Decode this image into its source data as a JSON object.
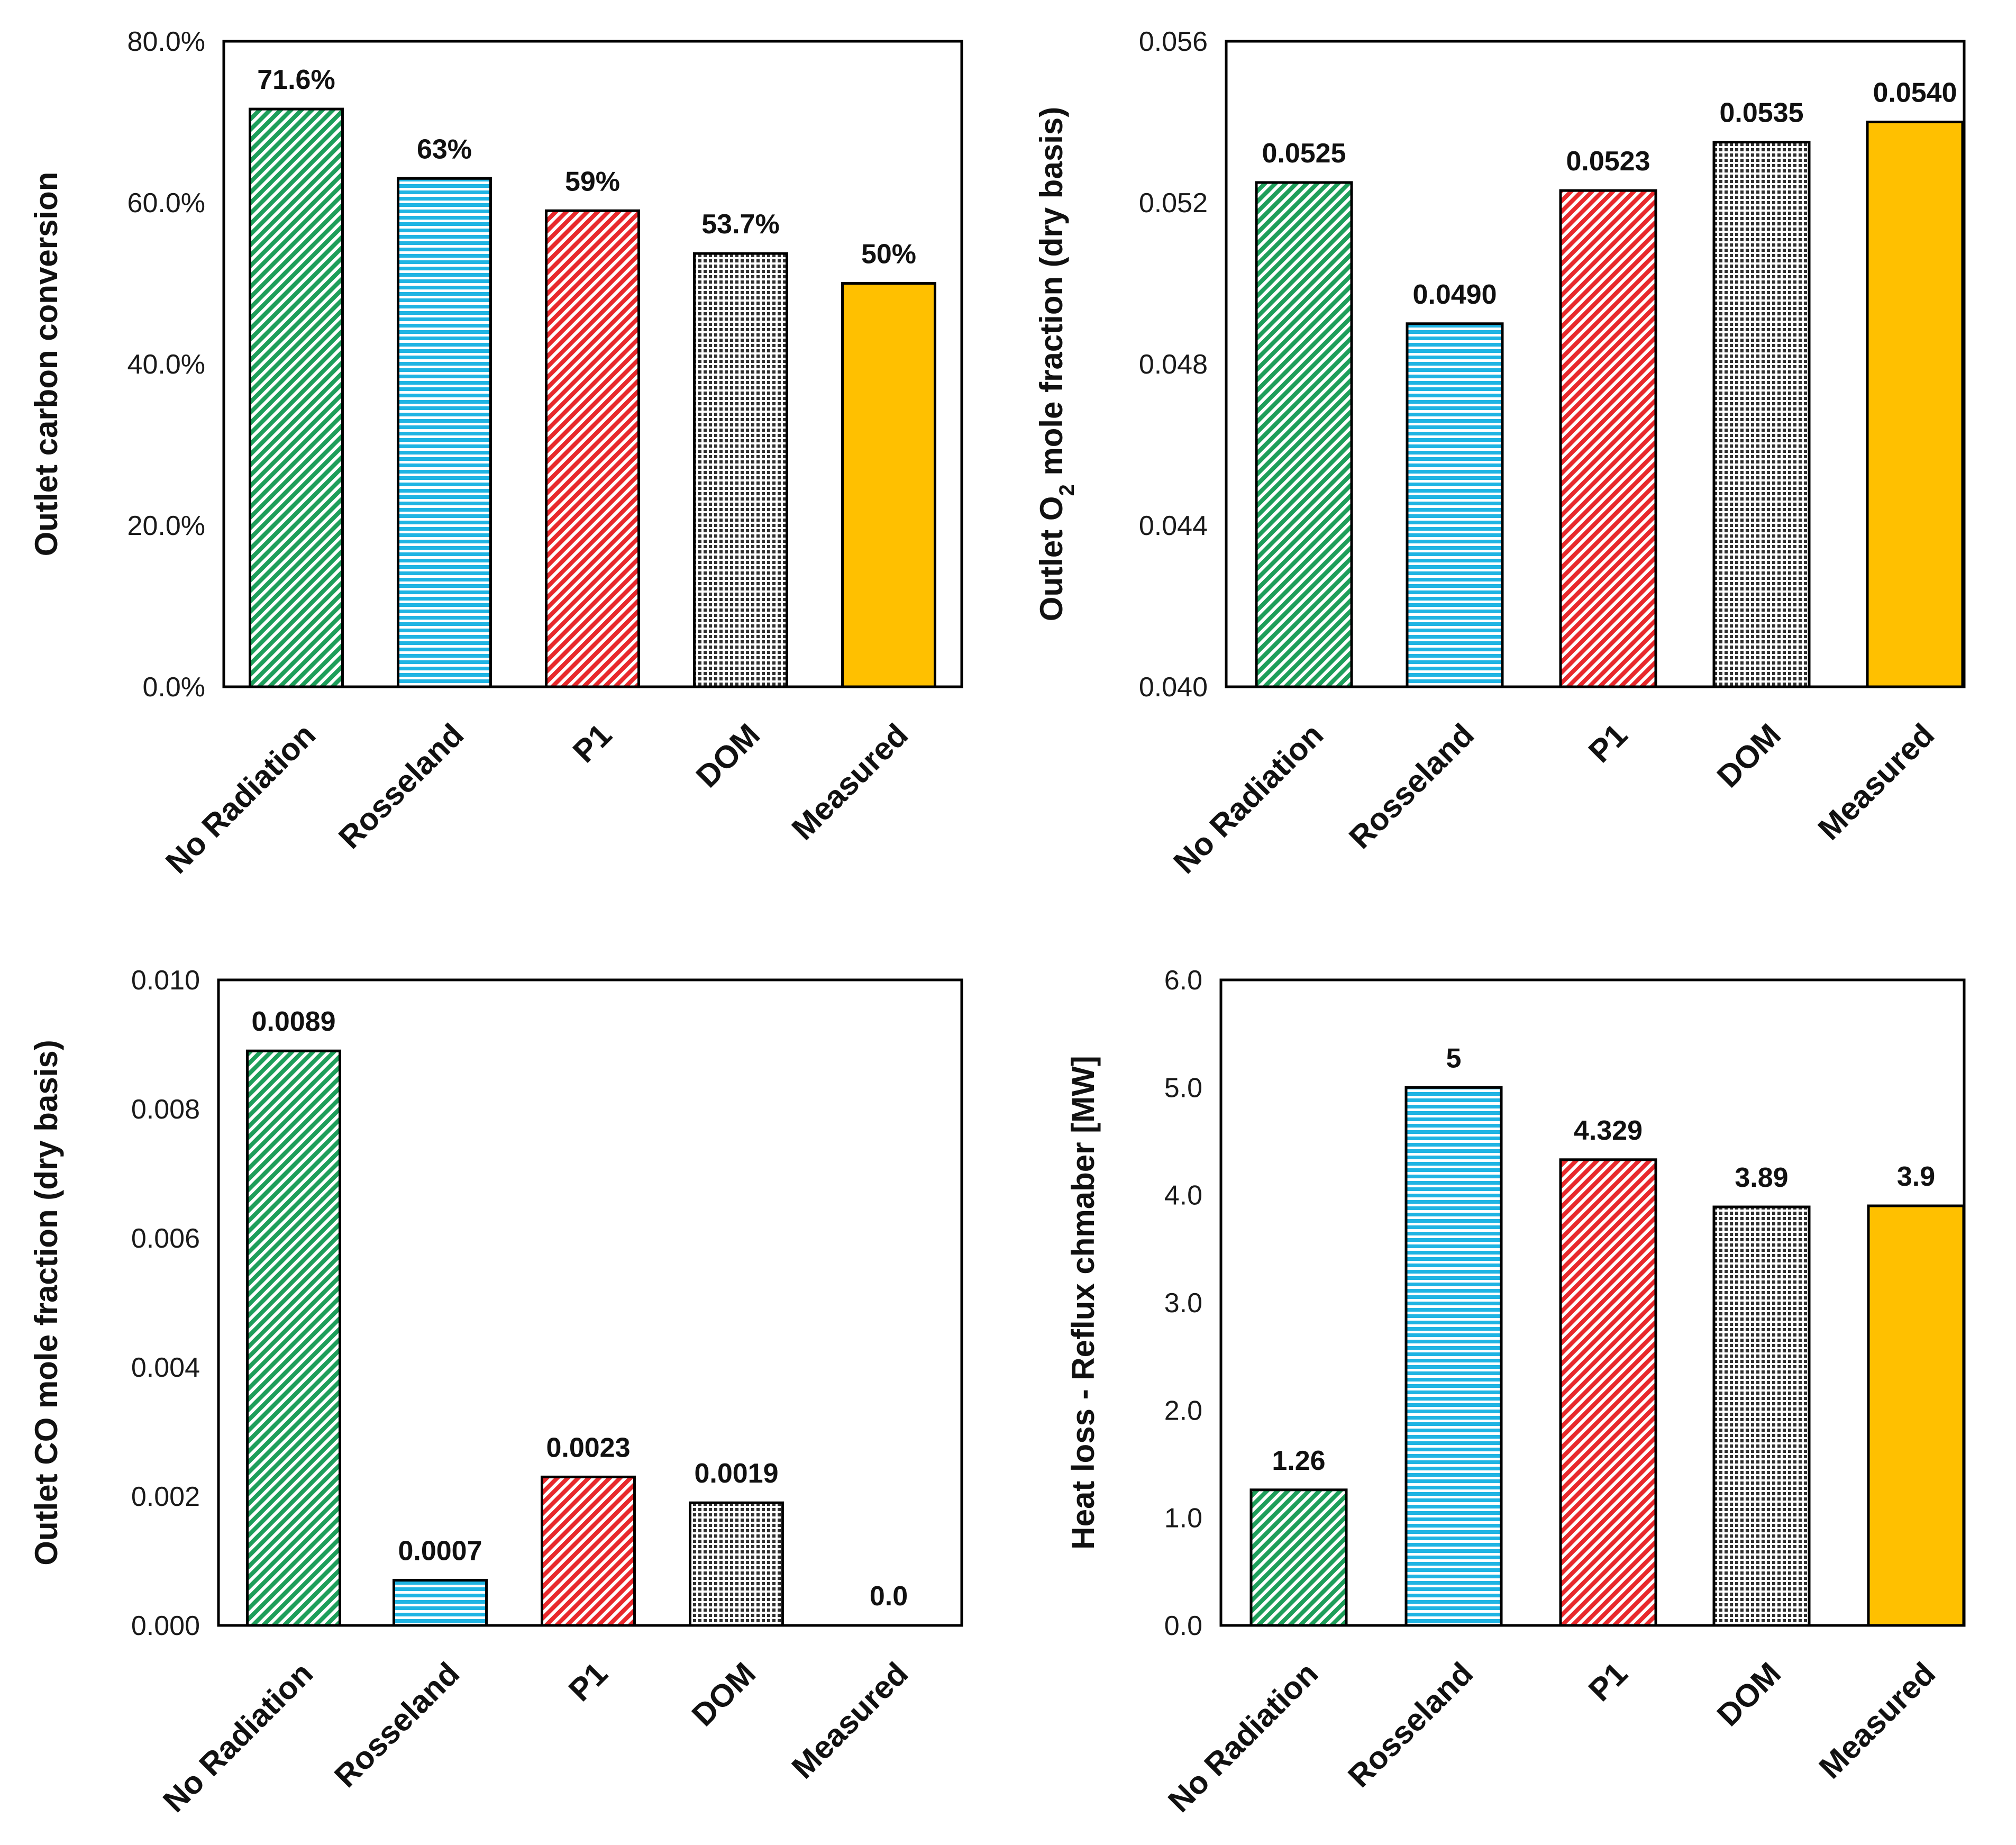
{
  "chart_data": [
    {
      "type": "bar",
      "id": "carbon",
      "ylabel": "Outlet carbon conversion",
      "categories": [
        "No Radiation",
        "Rosseland",
        "P1",
        "DOM",
        "Measured"
      ],
      "values": [
        71.6,
        63,
        59,
        53.7,
        50
      ],
      "data_labels": [
        "71.6%",
        "63%",
        "59%",
        "53.7%",
        "50%"
      ],
      "ylim": [
        0,
        80
      ],
      "yticks": [
        0,
        20,
        40,
        60,
        80
      ],
      "ytick_labels": [
        "0.0%",
        "20.0%",
        "40.0%",
        "60.0%",
        "80.0%"
      ]
    },
    {
      "type": "bar",
      "id": "o2",
      "ylabel_parts": {
        "pre": "Outlet O",
        "sub": "2",
        "post": " mole fraction (dry basis)"
      },
      "categories": [
        "No Radiation",
        "Rosseland",
        "P1",
        "DOM",
        "Measured"
      ],
      "values": [
        0.0525,
        0.049,
        0.0523,
        0.0535,
        0.054
      ],
      "data_labels": [
        "0.0525",
        "0.0490",
        "0.0523",
        "0.0535",
        "0.0540"
      ],
      "ylim": [
        0.04,
        0.056
      ],
      "yticks": [
        0.04,
        0.044,
        0.048,
        0.052,
        0.056
      ],
      "ytick_labels": [
        "0.040",
        "0.044",
        "0.048",
        "0.052",
        "0.056"
      ]
    },
    {
      "type": "bar",
      "id": "co",
      "ylabel": "Outlet CO mole fraction (dry basis)",
      "categories": [
        "No Radiation",
        "Rosseland",
        "P1",
        "DOM",
        "Measured"
      ],
      "values": [
        0.0089,
        0.0007,
        0.0023,
        0.0019,
        0.0
      ],
      "data_labels": [
        "0.0089",
        "0.0007",
        "0.0023",
        "0.0019",
        "0.0"
      ],
      "ylim": [
        0,
        0.01
      ],
      "yticks": [
        0,
        0.002,
        0.004,
        0.006,
        0.008,
        0.01
      ],
      "ytick_labels": [
        "0.000",
        "0.002",
        "0.004",
        "0.006",
        "0.008",
        "0.010"
      ]
    },
    {
      "type": "bar",
      "id": "heat",
      "ylabel": "Heat loss - Reflux chmaber [MW]",
      "categories": [
        "No Radiation",
        "Rosseland",
        "P1",
        "DOM",
        "Measured"
      ],
      "values": [
        1.26,
        5,
        4.329,
        3.89,
        3.9
      ],
      "data_labels": [
        "1.26",
        "5",
        "4.329",
        "3.89",
        "3.9"
      ],
      "ylim": [
        0,
        6
      ],
      "yticks": [
        0,
        1,
        2,
        3,
        4,
        5,
        6
      ],
      "ytick_labels": [
        "0.0",
        "1.0",
        "2.0",
        "3.0",
        "4.0",
        "5.0",
        "6.0"
      ]
    }
  ],
  "series_styles": {
    "No Radiation": {
      "pattern": "diagonal-hatch",
      "color": "#1e9e5a"
    },
    "Rosseland": {
      "pattern": "horizontal-lines",
      "color": "#1fb4e3"
    },
    "P1": {
      "pattern": "diagonal-hatch",
      "color": "#e8292c"
    },
    "DOM": {
      "pattern": "dotted-grid",
      "color": "#303030"
    },
    "Measured": {
      "pattern": "solid",
      "color": "#ffc000"
    }
  }
}
